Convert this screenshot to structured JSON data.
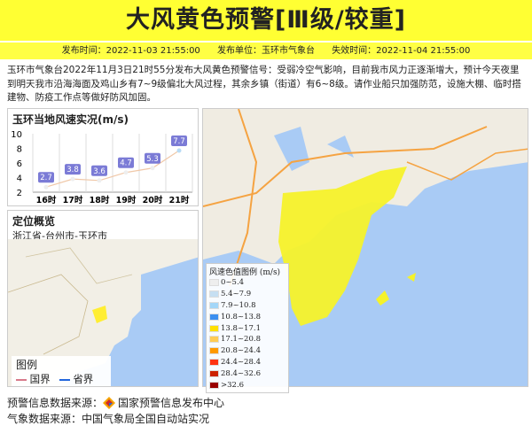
{
  "title": "大风黄色预警[Ⅲ级/较重]",
  "info": {
    "publish_time": "发布时间：2022-11-03 21:55:00",
    "publisher": "发布单位：玉环市气象台",
    "expire_time": "失效时间：2022-11-04 21:55:00"
  },
  "description": "玉环市气象台2022年11月3日21时55分发布大风黄色预警信号：受弱冷空气影响，目前我市风力正逐渐增大，预计今天夜里到明天我市沿海海面及鸡山乡有7~9级偏北大风过程，其余乡镇（街道）有6~8级。请作业船只加强防范，设施大棚、临时搭建物、防疫工作点等做好防风加固。",
  "wind_chart": {
    "title": "玉环当地风速实况(m/s)"
  },
  "chart_data": {
    "type": "line",
    "categories": [
      "16时",
      "17时",
      "18时",
      "19时",
      "20时",
      "21时"
    ],
    "values": [
      2.7,
      3.8,
      3.6,
      4.7,
      5.3,
      7.7
    ],
    "ylim": [
      2,
      10
    ],
    "yticks": [
      2,
      4,
      6,
      8,
      10
    ],
    "grid": "vertical",
    "line_color": "#f0c8a8",
    "label_color": "#7b7bd6"
  },
  "location": {
    "title": "定位概览",
    "path": "浙江省-台州市-玉环市"
  },
  "map_legend": {
    "title": "图例",
    "items": [
      {
        "label": "国界",
        "color": "#d87a8a"
      },
      {
        "label": "省界",
        "color": "#2266dd"
      }
    ]
  },
  "wind_legend": {
    "title": "风速色值图例 (m/s)",
    "items": [
      {
        "label": "0~5.4",
        "color": "#eeeeee"
      },
      {
        "label": "5.4~7.9",
        "color": "#c6dff2"
      },
      {
        "label": "7.9~10.8",
        "color": "#a3d6f8"
      },
      {
        "label": "10.8~13.8",
        "color": "#3b8ff0"
      },
      {
        "label": "13.8~17.1",
        "color": "#ffe000"
      },
      {
        "label": "17.1~20.8",
        "color": "#ffcc55"
      },
      {
        "label": "20.8~24.4",
        "color": "#ff9900"
      },
      {
        "label": "24.4~28.4",
        "color": "#ff3311"
      },
      {
        "label": "28.4~32.6",
        "color": "#cc2200"
      },
      {
        "label": ">32.6",
        "color": "#990000"
      }
    ]
  },
  "source": {
    "label": "预警信息数据来源：",
    "org": "国家预警信息发布中心",
    "weather_source": "气象数据来源：中国气象局全国自动站实况"
  }
}
